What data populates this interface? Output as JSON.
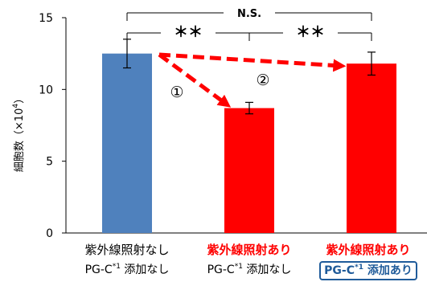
{
  "chart_data": {
    "type": "bar",
    "title": "",
    "ylabel": "細胞数（×10⁴）",
    "ylabel_main": "細胞数（×10",
    "ylabel_exp": "4",
    "ylabel_close": "）",
    "ylim": [
      0,
      15
    ],
    "yticks": [
      "0",
      "5",
      "10",
      "15"
    ],
    "values": [
      12.5,
      8.7,
      11.8
    ],
    "errors": [
      1.0,
      0.4,
      0.8
    ],
    "bar_colors": [
      "#4f81bd",
      "#ff0000",
      "#ff0000"
    ],
    "categories": [
      {
        "line1": "紫外線照射なし",
        "line1_style": "plain",
        "pg": "PG-C",
        "sup": "*1",
        "tail": " 添加なし",
        "line2_style": "plain"
      },
      {
        "line1": "紫外線照射あり",
        "line1_style": "red",
        "pg": "PG-C",
        "sup": "*1",
        "tail": " 添加なし",
        "line2_style": "plain"
      },
      {
        "line1": "紫外線照射あり",
        "line1_style": "red",
        "pg": "PG-C",
        "sup": "*1",
        "tail": " 添加あり",
        "line2_style": "boxed"
      }
    ],
    "significance": [
      {
        "label": "N.S.",
        "from": 0,
        "to": 2
      },
      {
        "label": "＊＊",
        "from": 0,
        "to": 1
      },
      {
        "label": "＊＊",
        "from": 1,
        "to": 2
      }
    ],
    "arrows": [
      {
        "label": "①",
        "from": 0,
        "to": 1
      },
      {
        "label": "②",
        "from": 0,
        "to": 2
      }
    ],
    "arrow_color": "#ff0000",
    "grid": false
  }
}
